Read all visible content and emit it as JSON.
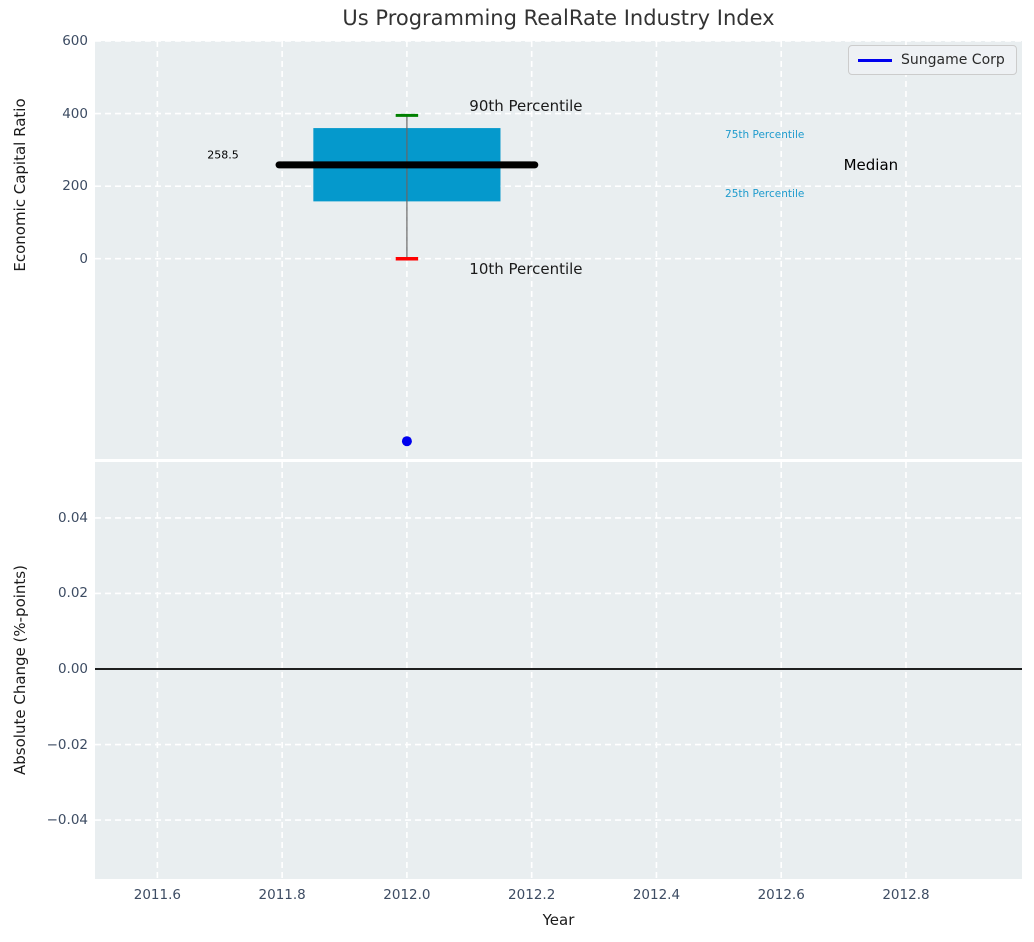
{
  "figure": {
    "title": "Us Programming RealRate Industry Index",
    "bg": "#ffffff",
    "axes_bg": "#e9eef0",
    "grid_color": "#ffffff",
    "tick_color": "#3d4c63",
    "title_color": "#333333"
  },
  "legend": {
    "label": "Sungame Corp",
    "line_color": "#0000ee"
  },
  "chart_data": [
    {
      "type": "boxplot",
      "name": "economic-capital-ratio-panel",
      "ylabel": "Economic Capital Ratio",
      "xlim": [
        2011.5,
        2012.986
      ],
      "ylim": [
        -552,
        600
      ],
      "grid": "white dashed, on",
      "legend_position": "upper right",
      "yticks": {
        "values": [
          600,
          400,
          200,
          0
        ],
        "labels": [
          "600",
          "400",
          "200",
          "0"
        ]
      },
      "xticks": {
        "values": [
          2011.6,
          2011.8,
          2012.0,
          2012.2,
          2012.4,
          2012.6,
          2012.8
        ],
        "labels": []
      },
      "legend": {
        "label": "Sungame Corp",
        "line_color": "#0000ee"
      },
      "box": {
        "center_x": 2012.0,
        "box_span": [
          2011.85,
          2012.15
        ],
        "median_span": [
          2011.795,
          2012.205
        ],
        "cap_span": [
          2011.982,
          2012.018
        ],
        "p10": 0,
        "p25": 158,
        "median": 258.5,
        "p75": 360,
        "p90": 395,
        "colors": {
          "box": "#0599cc",
          "median": "#000000",
          "whisker": "#666666",
          "cap_top": "#008000",
          "cap_bottom": "#ff0000"
        }
      },
      "median_value_label": {
        "text": "258.5",
        "x": 2011.68,
        "y": 286,
        "size": 11,
        "color": "#000000"
      },
      "annotations": [
        {
          "id": "p90-label",
          "text": "90th Percentile",
          "x": 2012.1,
          "y": 420,
          "size": 15,
          "color": "#1a1a1a"
        },
        {
          "id": "p10-label",
          "text": "10th Percentile",
          "x": 2012.1,
          "y": -29,
          "size": 15,
          "color": "#1a1a1a"
        },
        {
          "id": "p75-label",
          "text": "75th Percentile",
          "x": 2012.51,
          "y": 341,
          "size": 10.5,
          "color": "#1e9bcd"
        },
        {
          "id": "p25-label",
          "text": "25th Percentile",
          "x": 2012.51,
          "y": 178,
          "size": 10.5,
          "color": "#1e9bcd"
        },
        {
          "id": "median-label",
          "text": "Median",
          "x": 2012.7,
          "y": 258,
          "size": 15,
          "color": "#000000"
        }
      ],
      "points": [
        {
          "series": "Sungame Corp",
          "x": 2012.0,
          "y": -503,
          "color": "#0000ee",
          "radius": 5
        }
      ]
    },
    {
      "type": "line",
      "name": "absolute-change-panel",
      "ylabel": "Absolute Change (%-points)",
      "xlabel": "Year",
      "xlim": [
        2011.5,
        2012.986
      ],
      "ylim": [
        -0.0556,
        0.0548
      ],
      "grid": "white dashed, on",
      "yticks": {
        "values": [
          0.04,
          0.02,
          0.0,
          -0.02,
          -0.04
        ],
        "labels": [
          "0.04",
          "0.02",
          "0.00",
          "−0.02",
          "−0.04"
        ]
      },
      "xticks": {
        "values": [
          2011.6,
          2011.8,
          2012.0,
          2012.2,
          2012.4,
          2012.6,
          2012.8
        ],
        "labels": [
          "2011.6",
          "2011.8",
          "2012.0",
          "2012.2",
          "2012.4",
          "2012.6",
          "2012.8"
        ]
      },
      "zero_line": {
        "y": 0.0,
        "color": "#000000"
      },
      "series": [
        {
          "name": "Sungame Corp",
          "x": [],
          "y": []
        }
      ]
    }
  ]
}
